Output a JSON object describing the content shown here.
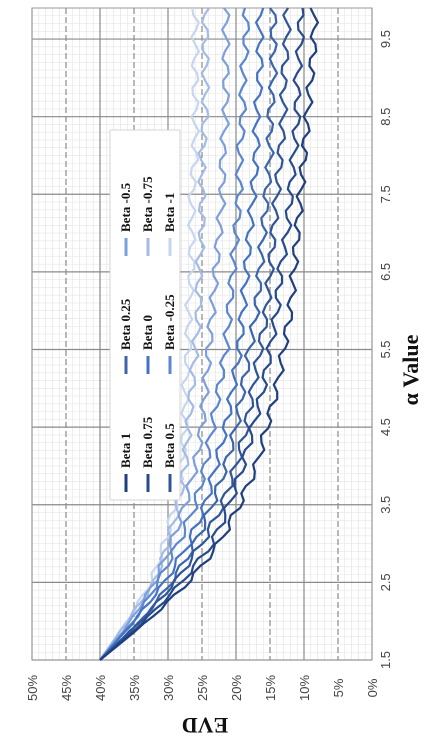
{
  "chart_data": {
    "type": "line",
    "title": "",
    "xlabel": "α Value",
    "ylabel": "EVD",
    "x_ticks": [
      "1.5",
      "2.5",
      "3.5",
      "4.5",
      "5.5",
      "6.5",
      "7.5",
      "8.5",
      "9.5"
    ],
    "y_ticks": [
      "0%",
      "5%",
      "10%",
      "15%",
      "20%",
      "25%",
      "30%",
      "35%",
      "40%",
      "45%",
      "50%"
    ],
    "xlim": [
      1.5,
      9.9
    ],
    "ylim": [
      0,
      50
    ],
    "grid": true,
    "legend_position": "inside, top-left",
    "x": [
      1.5,
      2,
      2.5,
      3,
      3.5,
      4,
      4.5,
      5,
      5.5,
      6,
      6.5,
      7,
      7.5,
      8,
      8.5,
      9,
      9.5,
      9.9
    ],
    "series": [
      {
        "name": "Beta 1",
        "color": "#1f3f7f",
        "values": [
          40,
          33,
          27,
          22.5,
          19.5,
          17,
          15.5,
          14,
          13,
          12,
          11.5,
          11,
          10.5,
          10,
          9.5,
          9,
          8.5,
          8.5
        ]
      },
      {
        "name": "Beta 0.75",
        "color": "#274a8e",
        "values": [
          40,
          33.5,
          28,
          23.5,
          21,
          19,
          17.5,
          16,
          15,
          14,
          13.5,
          12.5,
          12,
          11.5,
          11,
          11,
          10.5,
          10.5
        ]
      },
      {
        "name": "Beta 0.5",
        "color": "#2f5597",
        "values": [
          40,
          34,
          29,
          25,
          22,
          20,
          18.5,
          17.5,
          16.5,
          15.5,
          15,
          14.5,
          14,
          13.5,
          13,
          13,
          12.5,
          12.5
        ]
      },
      {
        "name": "Beta 0.25",
        "color": "#3b65ad",
        "values": [
          40,
          34,
          29.5,
          26,
          23.5,
          21.5,
          20,
          19,
          18,
          17,
          16.5,
          16,
          15.5,
          15,
          15,
          14.5,
          14.5,
          14.5
        ]
      },
      {
        "name": "Beta 0",
        "color": "#4472c4",
        "values": [
          40,
          35,
          30.5,
          27,
          24.5,
          23,
          21.5,
          20.5,
          19.5,
          19,
          18.5,
          18,
          17.5,
          17,
          17,
          16.5,
          16.5,
          16.5
        ]
      },
      {
        "name": "Beta -0.25",
        "color": "#5b86d0",
        "values": [
          40,
          35,
          31.5,
          28.5,
          26,
          24.5,
          23.5,
          22.5,
          21.5,
          21,
          20.5,
          20,
          19.5,
          19.5,
          19,
          19,
          18.5,
          18.5
        ]
      },
      {
        "name": "Beta -0.5",
        "color": "#7d9fdb",
        "values": [
          40,
          35.5,
          32,
          29.5,
          27.5,
          26,
          25,
          24.5,
          24,
          23.5,
          23,
          22.5,
          22,
          22,
          21.5,
          21.5,
          21.5,
          21.5
        ]
      },
      {
        "name": "Beta -0.75",
        "color": "#a3bbe5",
        "values": [
          40,
          36,
          32,
          30,
          28.5,
          27.5,
          27,
          26.5,
          26,
          25.5,
          25.5,
          25,
          25,
          25,
          24.5,
          24.5,
          24.5,
          24.5
        ]
      },
      {
        "name": "Beta -1",
        "color": "#c7d6ef",
        "values": [
          40,
          36,
          32.5,
          30.5,
          29,
          28,
          27.5,
          27.5,
          27,
          27,
          26.5,
          26.5,
          26.5,
          26,
          26,
          26,
          26,
          26
        ]
      }
    ]
  }
}
